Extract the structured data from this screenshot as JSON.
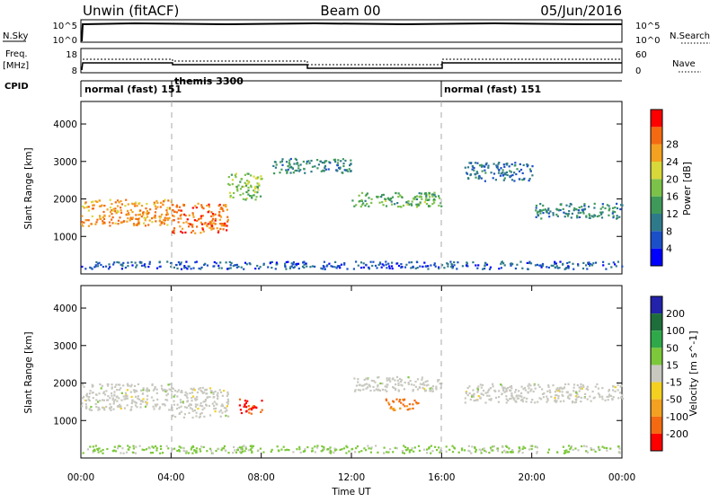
{
  "header": {
    "station": "Unwin (fitACF)",
    "beam": "Beam 00",
    "date": "05/Jun/2016"
  },
  "nsky_panel": {
    "label": "N.Sky",
    "left_ticks": [
      "10^5",
      "10^0"
    ],
    "right_ticks": [
      "10^5",
      "10^0"
    ],
    "right_label": "N.Search"
  },
  "freq_panel": {
    "label_line1": "Freq.",
    "label_line2": "[MHz]",
    "left_ticks": [
      "18",
      "8"
    ],
    "right_ticks": [
      "60",
      "0"
    ],
    "right_label": "Nave"
  },
  "cpid_panel": {
    "label": "CPID",
    "segments": [
      {
        "start_hour": 0,
        "end_hour": 3.9,
        "text": "normal (fast) 151"
      },
      {
        "start_hour": 3.9,
        "end_hour": 16,
        "text": "themis 3300"
      },
      {
        "start_hour": 16,
        "end_hour": 24,
        "text": "normal (fast) 151"
      }
    ]
  },
  "colors": {
    "power": [
      "#0000ff",
      "#1a4fc8",
      "#2f7a8a",
      "#3f9a5a",
      "#7cc24a",
      "#d8d83a",
      "#f4a020",
      "#f46a10",
      "#ff0000"
    ],
    "velocity": [
      "#2222aa",
      "#1e6e3c",
      "#2fa84a",
      "#7cc83a",
      "#c8c8c0",
      "#f4d020",
      "#f4a020",
      "#f46a10",
      "#ff0000"
    ]
  },
  "chart_data": [
    {
      "type": "heatmap",
      "name": "power",
      "ylabel": "Slant Range [km]",
      "yticks": [
        "1000",
        "2000",
        "3000",
        "4000"
      ],
      "ylim": [
        0,
        4600
      ],
      "xlim": [
        0,
        24
      ],
      "colorbar": {
        "label": "Power [dB]",
        "ticks": [
          "4",
          "8",
          "12",
          "16",
          "20",
          "24",
          "28"
        ],
        "range": [
          0,
          32
        ]
      },
      "regions": [
        {
          "x": [
            0,
            4
          ],
          "y": [
            1300,
            2000
          ],
          "value": 24
        },
        {
          "x": [
            4,
            6.5
          ],
          "y": [
            1100,
            1900
          ],
          "value": 26
        },
        {
          "x": [
            6.5,
            8
          ],
          "y": [
            2000,
            2700
          ],
          "value": 16
        },
        {
          "x": [
            8.5,
            12
          ],
          "y": [
            2700,
            3100
          ],
          "value": 10
        },
        {
          "x": [
            12,
            16
          ],
          "y": [
            1800,
            2200
          ],
          "value": 14
        },
        {
          "x": [
            17,
            20
          ],
          "y": [
            2500,
            3000
          ],
          "value": 8
        },
        {
          "x": [
            20,
            24
          ],
          "y": [
            1500,
            1900
          ],
          "value": 10
        },
        {
          "x": [
            0,
            24
          ],
          "y": [
            150,
            350
          ],
          "value": 6
        }
      ]
    },
    {
      "type": "heatmap",
      "name": "velocity",
      "ylabel": "Slant Range [km]",
      "yticks": [
        "1000",
        "2000",
        "3000",
        "4000"
      ],
      "ylim": [
        0,
        4600
      ],
      "xlim": [
        0,
        24
      ],
      "xticks": [
        "00:00",
        "04:00",
        "08:00",
        "12:00",
        "16:00",
        "20:00",
        "00:00"
      ],
      "xlabel": "Time UT",
      "colorbar": {
        "label": "Velocity [m s^-1]",
        "ticks": [
          "200",
          "100",
          "50",
          "15",
          "-15",
          "-50",
          "-100",
          "-200"
        ],
        "range": [
          -250,
          250
        ]
      },
      "regions": [
        {
          "x": [
            0,
            4
          ],
          "y": [
            1300,
            2000
          ],
          "value": 0
        },
        {
          "x": [
            4,
            6.5
          ],
          "y": [
            1100,
            1900
          ],
          "value": 0
        },
        {
          "x": [
            7,
            8
          ],
          "y": [
            1200,
            1600
          ],
          "value": -200
        },
        {
          "x": [
            13.5,
            15
          ],
          "y": [
            1300,
            1600
          ],
          "value": -150
        },
        {
          "x": [
            12,
            16
          ],
          "y": [
            1800,
            2200
          ],
          "value": 0
        },
        {
          "x": [
            17,
            24
          ],
          "y": [
            1500,
            2000
          ],
          "value": 0
        },
        {
          "x": [
            0,
            24
          ],
          "y": [
            150,
            350
          ],
          "value": 40
        }
      ]
    }
  ]
}
